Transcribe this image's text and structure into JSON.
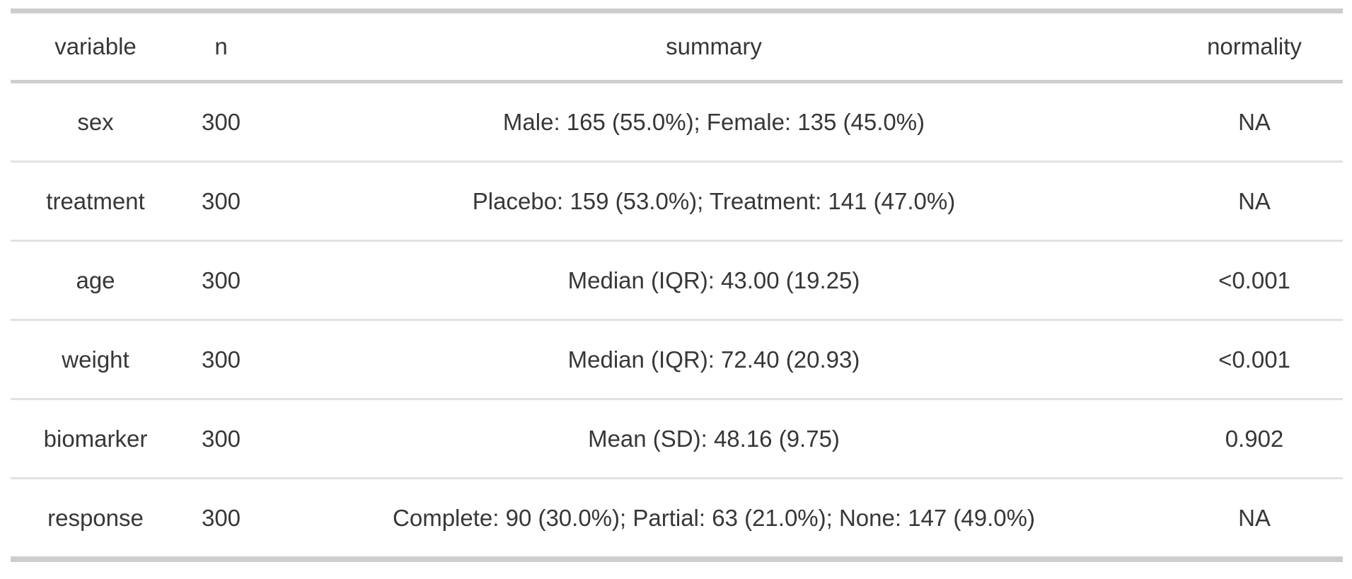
{
  "chart_data": {
    "type": "table",
    "columns": [
      "variable",
      "n",
      "summary",
      "normality"
    ],
    "rows": [
      {
        "variable": "sex",
        "n": "300",
        "summary": "Male: 165 (55.0%); Female: 135 (45.0%)",
        "normality": "NA"
      },
      {
        "variable": "treatment",
        "n": "300",
        "summary": "Placebo: 159 (53.0%); Treatment: 141 (47.0%)",
        "normality": "NA"
      },
      {
        "variable": "age",
        "n": "300",
        "summary": "Median (IQR): 43.00 (19.25)",
        "normality": "<0.001"
      },
      {
        "variable": "weight",
        "n": "300",
        "summary": "Median (IQR): 72.40 (20.93)",
        "normality": "<0.001"
      },
      {
        "variable": "biomarker",
        "n": "300",
        "summary": "Mean (SD): 48.16 (9.75)",
        "normality": "0.902"
      },
      {
        "variable": "response",
        "n": "300",
        "summary": "Complete: 90 (30.0%); Partial: 63 (21.0%); None: 147 (49.0%)",
        "normality": "NA"
      }
    ],
    "layout": {
      "alignment": "center",
      "grid": "horizontal-rules-only"
    },
    "colors": {
      "text": "#373737",
      "border_heavy": "#cdcdcd",
      "border_light": "#e2e2e2",
      "background": "#ffffff"
    }
  }
}
